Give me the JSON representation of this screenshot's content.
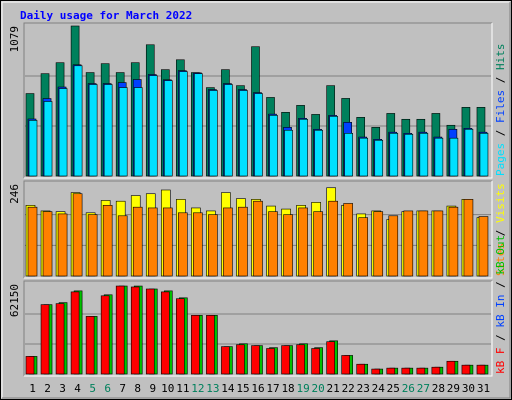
{
  "title": "Daily usage for March 2022",
  "legend_separator": " / ",
  "x_axis": {
    "categories": [
      "1",
      "2",
      "3",
      "4",
      "5",
      "6",
      "7",
      "8",
      "9",
      "10",
      "11",
      "12",
      "13",
      "14",
      "15",
      "16",
      "17",
      "18",
      "19",
      "20",
      "21",
      "22",
      "23",
      "24",
      "25",
      "26",
      "27",
      "28",
      "29",
      "30",
      "31"
    ],
    "weekend": [
      false,
      false,
      false,
      false,
      true,
      true,
      false,
      false,
      false,
      false,
      false,
      true,
      true,
      false,
      false,
      false,
      false,
      false,
      true,
      true,
      false,
      false,
      false,
      false,
      false,
      true,
      true,
      false,
      false,
      false,
      false
    ],
    "color": "#000000",
    "weekend_color": "#00805c"
  },
  "chart_data": [
    {
      "type": "bar",
      "ylim": [
        0,
        1079
      ],
      "yticks": [
        1079
      ],
      "series": [
        {
          "name": "Hits",
          "color": "#00805c",
          "values": [
            593,
            736,
            815,
            1079,
            744,
            808,
            744,
            815,
            944,
            765,
            836,
            744,
            636,
            765,
            650,
            930,
            565,
            458,
            508,
            443,
            650,
            558,
            422,
            350,
            450,
            408,
            408,
            450,
            365,
            494,
            494
          ]
        },
        {
          "name": "Files",
          "color": "#0040ff",
          "values": [
            410,
            557,
            640,
            800,
            665,
            665,
            672,
            694,
            730,
            692,
            758,
            742,
            622,
            665,
            622,
            600,
            445,
            350,
            415,
            336,
            436,
            386,
            280,
            264,
            315,
            307,
            315,
            280,
            336,
            343,
            315
          ]
        },
        {
          "name": "Pages",
          "color": "#00e0ff",
          "values": [
            400,
            536,
            629,
            793,
            658,
            658,
            636,
            636,
            722,
            686,
            751,
            736,
            615,
            658,
            615,
            593,
            436,
            329,
            408,
            329,
            429,
            307,
            272,
            257,
            307,
            300,
            307,
            272,
            272,
            336,
            307
          ]
        }
      ]
    },
    {
      "type": "bar",
      "ylim": [
        0,
        246
      ],
      "yticks": [
        246
      ],
      "series": [
        {
          "name": "Visits",
          "color": "#ffff00",
          "values": [
            189,
            174,
            172,
            223,
            169,
            202,
            200,
            215,
            220,
            230,
            205,
            182,
            174,
            223,
            207,
            205,
            187,
            179,
            189,
            197,
            236,
            189,
            166,
            174,
            151,
            172,
            174,
            174,
            187,
            205,
            156
          ]
        },
        {
          "name": "Sites",
          "color": "#ff8000",
          "values": [
            184,
            172,
            166,
            220,
            164,
            189,
            161,
            184,
            182,
            182,
            169,
            169,
            164,
            182,
            184,
            200,
            172,
            164,
            182,
            172,
            200,
            194,
            156,
            172,
            161,
            174,
            174,
            174,
            184,
            205,
            159
          ]
        }
      ]
    },
    {
      "type": "bar",
      "ylim": [
        0,
        62150
      ],
      "yticks": [
        62150
      ],
      "series": [
        {
          "name": "kB Out",
          "color": "#00c000",
          "values": [
            12150,
            47900,
            49300,
            57400,
            39800,
            54700,
            60750,
            60750,
            58700,
            57400,
            52600,
            40500,
            40500,
            18900,
            20900,
            19600,
            18200,
            19600,
            20900,
            18200,
            22900,
            12800,
            6750,
            3400,
            4050,
            4050,
            4050,
            4700,
            8800,
            6100,
            6100
          ]
        },
        {
          "name": "kB In",
          "color": "#0040ff"
        },
        {
          "name": "kB F",
          "color": "#ff0000",
          "values": [
            12150,
            47900,
            48600,
            56700,
            39800,
            54000,
            60750,
            60100,
            58700,
            56700,
            52000,
            40500,
            40500,
            18900,
            20200,
            19600,
            17600,
            19600,
            20200,
            17600,
            22300,
            12800,
            6750,
            3400,
            4050,
            4050,
            4050,
            4700,
            8800,
            6100,
            6100
          ]
        }
      ]
    }
  ]
}
